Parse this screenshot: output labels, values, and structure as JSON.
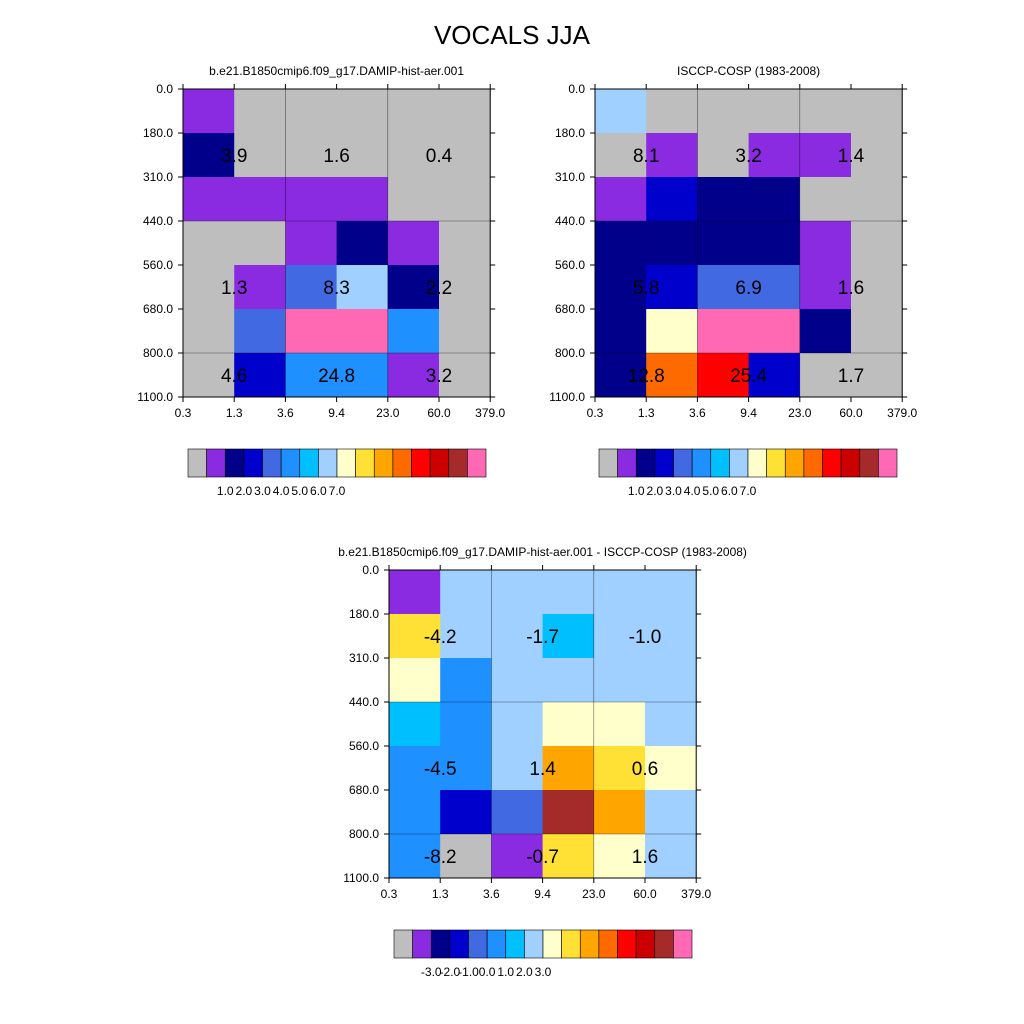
{
  "title": "VOCALS JJA",
  "palettes": {
    "fill": [
      "#BEBEBE",
      "#8A2BE2",
      "#00008B",
      "#0000CD",
      "#4169E1",
      "#1E90FF",
      "#00BFFF",
      "#A0D0FF",
      "#FFFFCC",
      "#FFE135",
      "#FFA500",
      "#FF6A00",
      "#FF0000",
      "#CD0000",
      "#A52A2A",
      "#FF69B4"
    ],
    "labels": {
      "main": [
        "1.0",
        "2.0",
        "3.0",
        "4.0",
        "5.0",
        "6.0",
        "7.0"
      ],
      "diff": [
        "-3.0",
        "-2.0",
        "-1.0",
        "0.0",
        "1.0",
        "2.0",
        "3.0"
      ]
    }
  },
  "chart_data": [
    {
      "type": "heatmap",
      "title": "b.e21.B1850cmip6.f09_g17.DAMIP-hist-aer.001",
      "x_ticks": [
        "0.3",
        "1.3",
        "3.6",
        "9.4",
        "23.0",
        "60.0",
        "379.0"
      ],
      "y_ticks": [
        "0.0",
        "180.0",
        "310.0",
        "440.0",
        "560.0",
        "680.0",
        "800.0",
        "1100.0"
      ],
      "cells": [
        [
          1,
          0,
          0,
          0,
          0,
          0
        ],
        [
          2,
          0,
          0,
          0,
          0,
          0
        ],
        [
          1,
          1,
          1,
          1,
          0,
          0
        ],
        [
          0,
          0,
          1,
          2,
          1,
          0
        ],
        [
          0,
          1,
          4,
          7,
          2,
          0
        ],
        [
          0,
          4,
          15,
          15,
          5,
          0
        ],
        [
          0,
          3,
          5,
          5,
          1,
          0
        ]
      ],
      "annotations": [
        {
          "text": "3.9",
          "row": 1,
          "col": 0
        },
        {
          "text": "1.6",
          "row": 1,
          "col": 2
        },
        {
          "text": "0.4",
          "row": 1,
          "col": 4
        },
        {
          "text": "1.3",
          "row": 4,
          "col": 0
        },
        {
          "text": "8.3",
          "row": 4,
          "col": 2
        },
        {
          "text": "2.2",
          "row": 4,
          "col": 4
        },
        {
          "text": "4.6",
          "row": 6,
          "col": 0
        },
        {
          "text": "24.8",
          "row": 6,
          "col": 2
        },
        {
          "text": "3.2",
          "row": 6,
          "col": 4
        }
      ],
      "colorbar": "main"
    },
    {
      "type": "heatmap",
      "title": "ISCCP-COSP (1983-2008)",
      "x_ticks": [
        "0.3",
        "1.3",
        "3.6",
        "9.4",
        "23.0",
        "60.0",
        "379.0"
      ],
      "y_ticks": [
        "0.0",
        "180.0",
        "310.0",
        "440.0",
        "560.0",
        "680.0",
        "800.0",
        "1100.0"
      ],
      "cells": [
        [
          7,
          0,
          0,
          0,
          0,
          0
        ],
        [
          0,
          1,
          0,
          1,
          1,
          0
        ],
        [
          1,
          3,
          2,
          2,
          0,
          0
        ],
        [
          2,
          2,
          2,
          2,
          1,
          0
        ],
        [
          2,
          3,
          4,
          4,
          1,
          0
        ],
        [
          2,
          8,
          15,
          15,
          2,
          0
        ],
        [
          2,
          11,
          12,
          3,
          0,
          0
        ]
      ],
      "annotations": [
        {
          "text": "8.1",
          "row": 1,
          "col": 0
        },
        {
          "text": "3.2",
          "row": 1,
          "col": 2
        },
        {
          "text": "1.4",
          "row": 1,
          "col": 4
        },
        {
          "text": "5.8",
          "row": 4,
          "col": 0
        },
        {
          "text": "6.9",
          "row": 4,
          "col": 2
        },
        {
          "text": "1.6",
          "row": 4,
          "col": 4
        },
        {
          "text": "12.8",
          "row": 6,
          "col": 0
        },
        {
          "text": "25.4",
          "row": 6,
          "col": 2
        },
        {
          "text": "1.7",
          "row": 6,
          "col": 4
        }
      ],
      "colorbar": "main"
    },
    {
      "type": "heatmap",
      "title": "b.e21.B1850cmip6.f09_g17.DAMIP-hist-aer.001 - ISCCP-COSP (1983-2008)",
      "x_ticks": [
        "0.3",
        "1.3",
        "3.6",
        "9.4",
        "23.0",
        "60.0",
        "379.0"
      ],
      "y_ticks": [
        "0.0",
        "180.0",
        "310.0",
        "440.0",
        "560.0",
        "680.0",
        "800.0",
        "1100.0"
      ],
      "cells": [
        [
          1,
          7,
          7,
          7,
          7,
          7
        ],
        [
          9,
          7,
          7,
          6,
          7,
          7
        ],
        [
          8,
          5,
          7,
          7,
          7,
          7
        ],
        [
          6,
          5,
          7,
          8,
          8,
          7
        ],
        [
          5,
          5,
          7,
          10,
          9,
          8
        ],
        [
          5,
          3,
          4,
          14,
          10,
          7
        ],
        [
          5,
          0,
          1,
          9,
          8,
          7
        ]
      ],
      "annotations": [
        {
          "text": "-4.2",
          "row": 1,
          "col": 0
        },
        {
          "text": "-1.7",
          "row": 1,
          "col": 2
        },
        {
          "text": "-1.0",
          "row": 1,
          "col": 4
        },
        {
          "text": "-4.5",
          "row": 4,
          "col": 0
        },
        {
          "text": "1.4",
          "row": 4,
          "col": 2
        },
        {
          "text": "0.6",
          "row": 4,
          "col": 4
        },
        {
          "text": "-8.2",
          "row": 6,
          "col": 0
        },
        {
          "text": "-0.7",
          "row": 6,
          "col": 2
        },
        {
          "text": "1.6",
          "row": 6,
          "col": 4
        }
      ],
      "colorbar": "diff"
    }
  ]
}
